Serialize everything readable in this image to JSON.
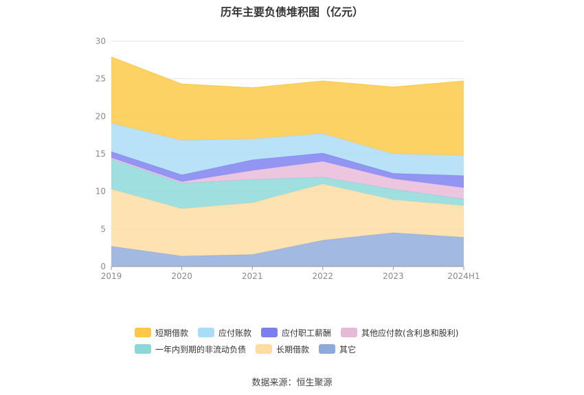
{
  "chart_data": {
    "type": "area",
    "stacked": true,
    "title": "历年主要负债堆积图（亿元）",
    "categories": [
      "2019",
      "2020",
      "2021",
      "2022",
      "2023",
      "2024H1"
    ],
    "ylim": [
      0,
      30
    ],
    "yticks": [
      0,
      5,
      10,
      15,
      20,
      25,
      30
    ],
    "grid": true,
    "legend_position": "bottom",
    "series": [
      {
        "name": "其它",
        "color": "#8eaadb",
        "values": [
          2.7,
          1.4,
          1.6,
          3.5,
          4.5,
          3.9
        ]
      },
      {
        "name": "长期借款",
        "color": "#ffdca0",
        "values": [
          7.6,
          6.3,
          6.9,
          7.5,
          4.4,
          4.2
        ]
      },
      {
        "name": "一年内到期的非流动负债",
        "color": "#8ad8d8",
        "values": [
          4.0,
          3.4,
          3.1,
          0.9,
          1.4,
          0.9
        ]
      },
      {
        "name": "其他应付款(含利息和股利)",
        "color": "#e8b8d8",
        "values": [
          0.2,
          0.2,
          1.2,
          2.1,
          1.4,
          1.5
        ]
      },
      {
        "name": "应付职工薪酬",
        "color": "#7b7ef0",
        "values": [
          0.8,
          0.9,
          1.4,
          1.1,
          0.7,
          1.6
        ]
      },
      {
        "name": "应付账款",
        "color": "#a9dcf7",
        "values": [
          3.8,
          4.6,
          2.8,
          2.6,
          2.6,
          2.7
        ]
      },
      {
        "name": "短期借款",
        "color": "#fdc843",
        "values": [
          8.8,
          7.5,
          6.8,
          7.0,
          8.9,
          9.9
        ]
      }
    ]
  },
  "legend": {
    "row1": [
      {
        "label": "短期借款",
        "color": "#fdc843"
      },
      {
        "label": "应付账款",
        "color": "#a9dcf7"
      },
      {
        "label": "应付职工薪酬",
        "color": "#7b7ef0"
      },
      {
        "label": "其他应付款(含利息和股利)",
        "color": "#e8b8d8"
      }
    ],
    "row2": [
      {
        "label": "一年内到期的非流动负债",
        "color": "#8ad8d8"
      },
      {
        "label": "长期借款",
        "color": "#ffdca0"
      },
      {
        "label": "其它",
        "color": "#8eaadb"
      }
    ]
  },
  "source": "数据来源：恒生聚源"
}
